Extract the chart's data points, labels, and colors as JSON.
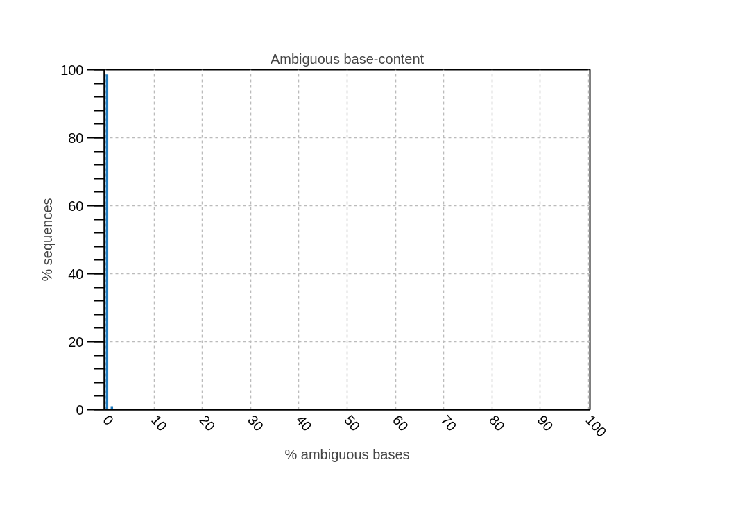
{
  "chart_data": {
    "type": "histogram",
    "title": "Ambiguous base-content",
    "xlabel": "% ambiguous bases",
    "ylabel": "% sequences",
    "bins": [
      0,
      0.5,
      1,
      1.5
    ],
    "values": [
      98.6,
      0,
      1.0
    ],
    "color": "#1f7bbf",
    "xlim": [
      -0.3,
      100.3
    ],
    "ylim": [
      0,
      100
    ],
    "xticks": [
      0,
      10,
      20,
      30,
      40,
      50,
      60,
      70,
      80,
      90,
      100
    ],
    "yticks": [
      0,
      20,
      40,
      60,
      80,
      100
    ],
    "grid": true
  }
}
